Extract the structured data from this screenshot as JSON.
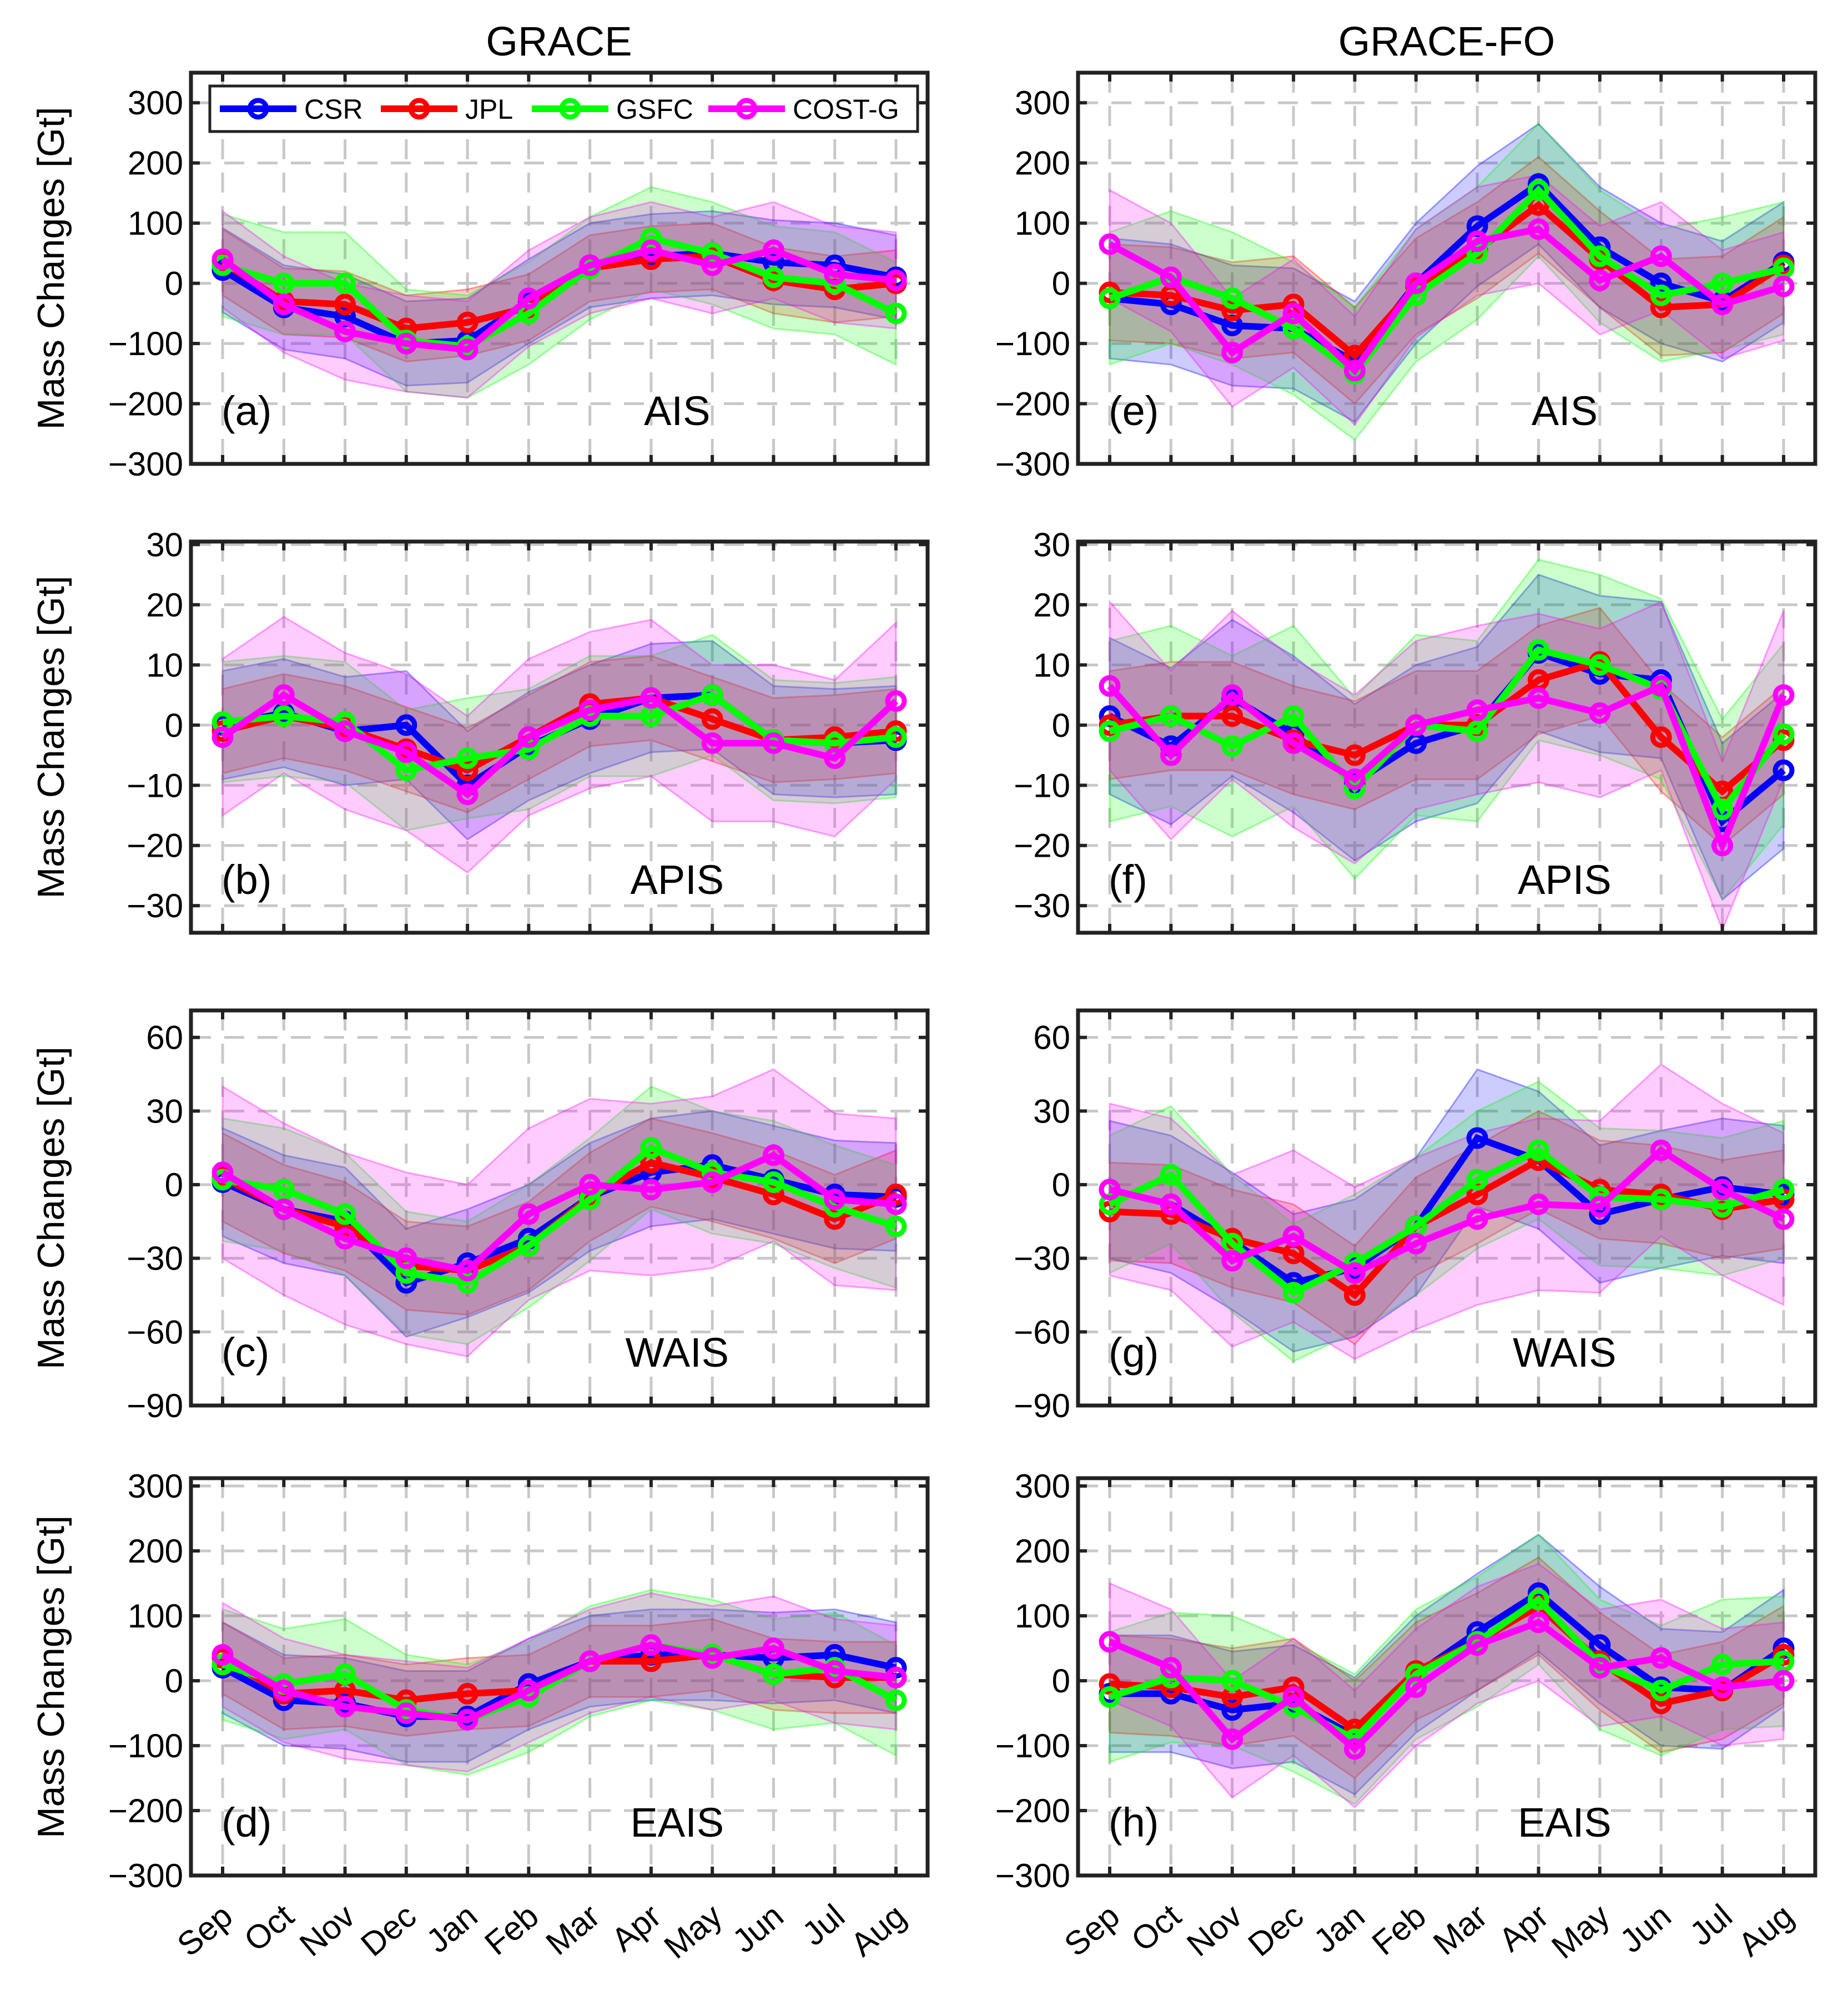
{
  "column_titles": [
    "GRACE",
    "GRACE-FO"
  ],
  "ylabel": "Mass Changes [Gt]",
  "months": [
    "Sep",
    "Oct",
    "Nov",
    "Dec",
    "Jan",
    "Feb",
    "Mar",
    "Apr",
    "May",
    "Jun",
    "Jul",
    "Aug"
  ],
  "legend": [
    {
      "name": "CSR",
      "color": "#0000ff"
    },
    {
      "name": "JPL",
      "color": "#ff0000"
    },
    {
      "name": "GSFC",
      "color": "#00ff00"
    },
    {
      "name": "COST-G",
      "color": "#ff00ff"
    }
  ],
  "chart_data": [
    {
      "type": "line",
      "label": "(a)",
      "region": "AIS",
      "column": 0,
      "row": 0,
      "ylim": [
        -300,
        350
      ],
      "yticks": [
        -300,
        -200,
        -100,
        0,
        100,
        200,
        300
      ],
      "series": [
        {
          "name": "CSR",
          "values": [
            22,
            -40,
            -55,
            -100,
            -95,
            -30,
            30,
            45,
            50,
            35,
            30,
            10
          ],
          "uncertainty": 70
        },
        {
          "name": "JPL",
          "values": [
            35,
            -30,
            -35,
            -75,
            -65,
            -40,
            25,
            40,
            45,
            5,
            -10,
            0
          ],
          "uncertainty": 55
        },
        {
          "name": "GSFC",
          "values": [
            30,
            0,
            0,
            -95,
            -105,
            -50,
            25,
            75,
            50,
            10,
            0,
            -50
          ],
          "uncertainty": 85
        },
        {
          "name": "COST-G",
          "values": [
            40,
            -35,
            -80,
            -100,
            -110,
            -25,
            30,
            55,
            30,
            55,
            15,
            5
          ],
          "uncertainty": 80
        }
      ]
    },
    {
      "type": "line",
      "label": "(b)",
      "region": "APIS",
      "column": 0,
      "row": 1,
      "ylim": [
        -34.5,
        30.5
      ],
      "yticks": [
        -30,
        -20,
        -10,
        0,
        10,
        20,
        30
      ],
      "series": [
        {
          "name": "CSR",
          "values": [
            0,
            2,
            -1,
            0,
            -10,
            -3.5,
            1,
            4.5,
            5,
            -2.5,
            -3,
            -2.5
          ],
          "uncertainty": 9
        },
        {
          "name": "JPL",
          "values": [
            -1,
            1.5,
            -0.5,
            -4,
            -7.5,
            -2,
            3.5,
            4.5,
            1,
            -2.5,
            -2,
            -1
          ],
          "uncertainty": 7
        },
        {
          "name": "GSFC",
          "values": [
            0.5,
            1.5,
            0.5,
            -7.5,
            -5.5,
            -4,
            1.5,
            1.5,
            5,
            -2.5,
            -3,
            -2
          ],
          "uncertainty": 10
        },
        {
          "name": "COST-G",
          "values": [
            -2,
            5,
            -1,
            -4.5,
            -11.5,
            -2,
            2.5,
            4.5,
            -3,
            -3,
            -5.5,
            4
          ],
          "uncertainty": 13
        }
      ]
    },
    {
      "type": "line",
      "label": "(c)",
      "region": "WAIS",
      "column": 0,
      "row": 2,
      "ylim": [
        -90,
        71
      ],
      "yticks": [
        -90,
        -60,
        -30,
        0,
        30,
        60
      ],
      "series": [
        {
          "name": "CSR",
          "values": [
            1,
            -10,
            -15,
            -40,
            -32,
            -22,
            -5,
            5,
            8,
            2,
            -4,
            -5
          ],
          "uncertainty": 22
        },
        {
          "name": "JPL",
          "values": [
            3,
            -10,
            -17,
            -33,
            -35,
            -25,
            -5,
            9,
            3,
            -4,
            -14,
            -4
          ],
          "uncertainty": 18
        },
        {
          "name": "GSFC",
          "values": [
            2,
            -2,
            -12,
            -36,
            -40,
            -25,
            -6,
            15,
            5,
            1,
            -9,
            -17
          ],
          "uncertainty": 25
        },
        {
          "name": "COST-G",
          "values": [
            5,
            -10,
            -22,
            -30,
            -35,
            -12,
            0,
            -2,
            1,
            12,
            -6,
            -8
          ],
          "uncertainty": 35
        }
      ]
    },
    {
      "type": "line",
      "label": "(d)",
      "region": "EAIS",
      "column": 0,
      "row": 3,
      "ylim": [
        -300,
        312
      ],
      "yticks": [
        -300,
        -200,
        -100,
        0,
        100,
        200,
        300
      ],
      "series": [
        {
          "name": "CSR",
          "values": [
            20,
            -30,
            -35,
            -55,
            -55,
            -5,
            30,
            40,
            40,
            35,
            40,
            20
          ],
          "uncertainty": 70
        },
        {
          "name": "JPL",
          "values": [
            35,
            -20,
            -15,
            -30,
            -20,
            -15,
            30,
            30,
            40,
            10,
            5,
            5
          ],
          "uncertainty": 55
        },
        {
          "name": "GSFC",
          "values": [
            25,
            -5,
            10,
            -45,
            -60,
            -25,
            30,
            55,
            40,
            10,
            20,
            -30
          ],
          "uncertainty": 85
        },
        {
          "name": "COST-G",
          "values": [
            40,
            -15,
            -40,
            -50,
            -60,
            -15,
            30,
            55,
            35,
            50,
            15,
            5
          ],
          "uncertainty": 80
        }
      ]
    },
    {
      "type": "line",
      "label": "(e)",
      "region": "AIS",
      "column": 1,
      "row": 0,
      "ylim": [
        -300,
        350
      ],
      "yticks": [
        -300,
        -200,
        -100,
        0,
        100,
        200,
        300
      ],
      "series": [
        {
          "name": "CSR",
          "values": [
            -25,
            -35,
            -70,
            -75,
            -130,
            0,
            95,
            165,
            60,
            0,
            -30,
            35
          ],
          "uncertainty": 100
        },
        {
          "name": "JPL",
          "values": [
            -15,
            -20,
            -45,
            -35,
            -120,
            -5,
            55,
            130,
            40,
            -40,
            -35,
            30
          ],
          "uncertainty": 80
        },
        {
          "name": "GSFC",
          "values": [
            -25,
            10,
            -25,
            -75,
            -150,
            -20,
            50,
            155,
            45,
            -20,
            0,
            25
          ],
          "uncertainty": 110
        },
        {
          "name": "COST-G",
          "values": [
            65,
            10,
            -115,
            -50,
            -145,
            0,
            70,
            90,
            5,
            45,
            -35,
            -5
          ],
          "uncertainty": 90
        }
      ]
    },
    {
      "type": "line",
      "label": "(f)",
      "region": "APIS",
      "column": 1,
      "row": 1,
      "ylim": [
        -34.5,
        30.5
      ],
      "yticks": [
        -30,
        -20,
        -10,
        0,
        10,
        20,
        30
      ],
      "series": [
        {
          "name": "CSR",
          "values": [
            1.5,
            -3.5,
            4.5,
            -1.5,
            -9.5,
            -3,
            0,
            12,
            8.5,
            7.5,
            -16,
            -7.5
          ],
          "uncertainty": 13
        },
        {
          "name": "JPL",
          "values": [
            0,
            1.5,
            1.5,
            -2.5,
            -5,
            0,
            0,
            7.5,
            10.5,
            -2,
            -11,
            -2.5
          ],
          "uncertainty": 9
        },
        {
          "name": "GSFC",
          "values": [
            -1,
            1.5,
            -3.5,
            1.5,
            -10.5,
            0,
            -1,
            12.5,
            10,
            6,
            -14,
            -1.5
          ],
          "uncertainty": 15
        },
        {
          "name": "COST-G",
          "values": [
            6.5,
            -5,
            5,
            -3,
            -9,
            0,
            2.5,
            4.5,
            2,
            6.5,
            -20,
            5
          ],
          "uncertainty": 14
        }
      ]
    },
    {
      "type": "line",
      "label": "(g)",
      "region": "WAIS",
      "column": 1,
      "row": 2,
      "ylim": [
        -90,
        71
      ],
      "yticks": [
        -90,
        -60,
        -30,
        0,
        30,
        60
      ],
      "series": [
        {
          "name": "CSR",
          "values": [
            -2,
            -8,
            -23,
            -40,
            -34,
            -17,
            19,
            10,
            -12,
            -6,
            -1,
            -4
          ],
          "uncertainty": 28
        },
        {
          "name": "JPL",
          "values": [
            -11,
            -12,
            -22,
            -28,
            -45,
            -17,
            -4,
            10,
            -2,
            -4,
            -10,
            -6
          ],
          "uncertainty": 20
        },
        {
          "name": "GSFC",
          "values": [
            -8,
            4,
            -24,
            -44,
            -32,
            -17,
            2,
            14,
            -5,
            -6,
            -9,
            -2
          ],
          "uncertainty": 28
        },
        {
          "name": "COST-G",
          "values": [
            -2,
            -8,
            -31,
            -21,
            -36,
            -24,
            -14,
            -8,
            -9,
            14,
            -2,
            -14
          ],
          "uncertainty": 35
        }
      ]
    },
    {
      "type": "line",
      "label": "(h)",
      "region": "EAIS",
      "column": 1,
      "row": 3,
      "ylim": [
        -300,
        312
      ],
      "yticks": [
        -300,
        -200,
        -100,
        0,
        100,
        200,
        300
      ],
      "series": [
        {
          "name": "CSR",
          "values": [
            -20,
            -20,
            -45,
            -35,
            -85,
            10,
            75,
            135,
            55,
            -10,
            -15,
            50
          ],
          "uncertainty": 90
        },
        {
          "name": "JPL",
          "values": [
            -5,
            -10,
            -25,
            -10,
            -75,
            15,
            60,
            115,
            30,
            -35,
            -15,
            40
          ],
          "uncertainty": 75
        },
        {
          "name": "GSFC",
          "values": [
            -25,
            5,
            0,
            -40,
            -90,
            10,
            60,
            125,
            25,
            -15,
            25,
            30
          ],
          "uncertainty": 100
        },
        {
          "name": "COST-G",
          "values": [
            60,
            20,
            -90,
            -25,
            -105,
            -10,
            55,
            90,
            20,
            35,
            -10,
            0
          ],
          "uncertainty": 90
        }
      ]
    }
  ]
}
